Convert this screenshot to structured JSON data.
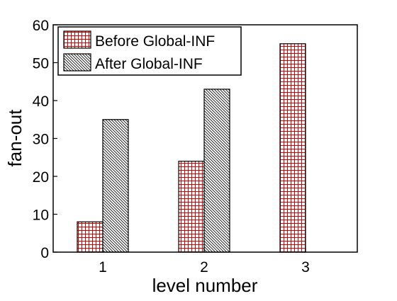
{
  "chart_data": {
    "type": "bar",
    "title": "",
    "xlabel": "level number",
    "ylabel": "fan-out",
    "categories": [
      "1",
      "2",
      "3"
    ],
    "ylim": [
      0,
      60
    ],
    "yticks": [
      0,
      10,
      20,
      30,
      40,
      50,
      60
    ],
    "grid": false,
    "legend_position": "top-left",
    "series": [
      {
        "name": "Before Global-INF",
        "values": [
          8,
          24,
          55
        ],
        "color": "#d40000",
        "pattern": "grid"
      },
      {
        "name": "After Global-INF",
        "values": [
          35,
          43,
          null
        ],
        "color": "#000000",
        "pattern": "diagonal-hatch"
      }
    ]
  }
}
